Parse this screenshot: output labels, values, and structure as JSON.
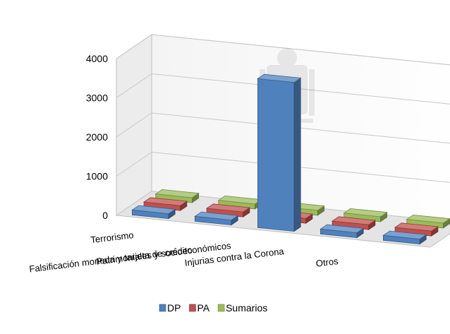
{
  "chart_data": {
    "type": "bar",
    "subtype": "3d-clustered",
    "categories": [
      "Terrorismo",
      "Falsificación moneda y tarjeta de crédito",
      "Patrimoniales y socioeconómicos",
      "Injurias contra la Corona",
      "Otros"
    ],
    "series": [
      {
        "name": "DP",
        "values": [
          80,
          40,
          3800,
          30,
          110
        ],
        "color": "#4f81bd"
      },
      {
        "name": "PA",
        "values": [
          5,
          5,
          20,
          5,
          10
        ],
        "color": "#c0504d"
      },
      {
        "name": "Sumarios",
        "values": [
          5,
          5,
          5,
          5,
          5
        ],
        "color": "#9bbb59"
      }
    ],
    "yticks": [
      0,
      1000,
      2000,
      3000,
      4000
    ],
    "ylim": [
      0,
      4000
    ],
    "grid": true,
    "legend": "bottom",
    "watermark_icon": "coat-of-arms-icon"
  }
}
